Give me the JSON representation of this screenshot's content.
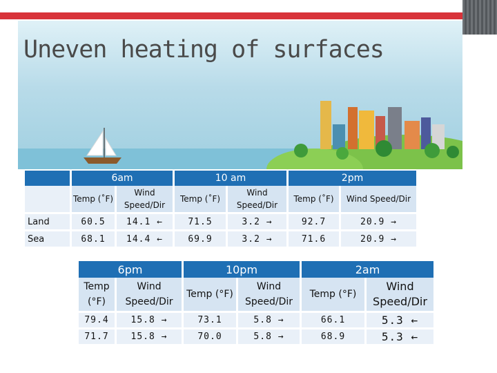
{
  "slide": {
    "title": "Uneven heating of surfaces"
  },
  "table_top": {
    "time_headers": [
      "6am",
      "10 am",
      "2pm"
    ],
    "sub_headers": [
      "Temp (˚F)",
      "Wind Speed/Dir",
      "Temp (˚F)",
      "Wind Speed/Dir",
      "Temp (˚F)",
      "Wind Speed/Dir"
    ],
    "rows": [
      {
        "label": "Land",
        "cells": [
          "60.5",
          "14.1 ←",
          "71.5",
          "3.2 →",
          "92.7",
          "20.9 →"
        ]
      },
      {
        "label": "Sea",
        "cells": [
          "68.1",
          "14.4 ←",
          "69.9",
          "3.2 →",
          "71.6",
          "20.9 →"
        ]
      }
    ]
  },
  "table_bottom": {
    "time_headers": [
      "6pm",
      "10pm",
      "2am"
    ],
    "sub_headers": [
      "Temp (°F)",
      "Wind Speed/Dir",
      "Temp (°F)",
      "Wind Speed/Dir",
      "Temp (°F)",
      "Wind Speed/Dir"
    ],
    "rows": [
      {
        "cells": [
          "79.4",
          "15.8 →",
          "73.1",
          "5.8 →",
          "66.1",
          "5.3 ←"
        ]
      },
      {
        "cells": [
          "71.7",
          "15.8 →",
          "70.0",
          "5.8 →",
          "68.9",
          "5.3 ←"
        ]
      }
    ]
  },
  "illustration": {
    "icons": [
      "sailboat-icon",
      "city-skyline-icon",
      "tree-icon"
    ]
  },
  "colors": {
    "header_blue": "#1f6fb4",
    "subheader_bg": "#d6e4f2",
    "row_bg": "#e9f0f8",
    "accent_red": "#d8333a"
  }
}
